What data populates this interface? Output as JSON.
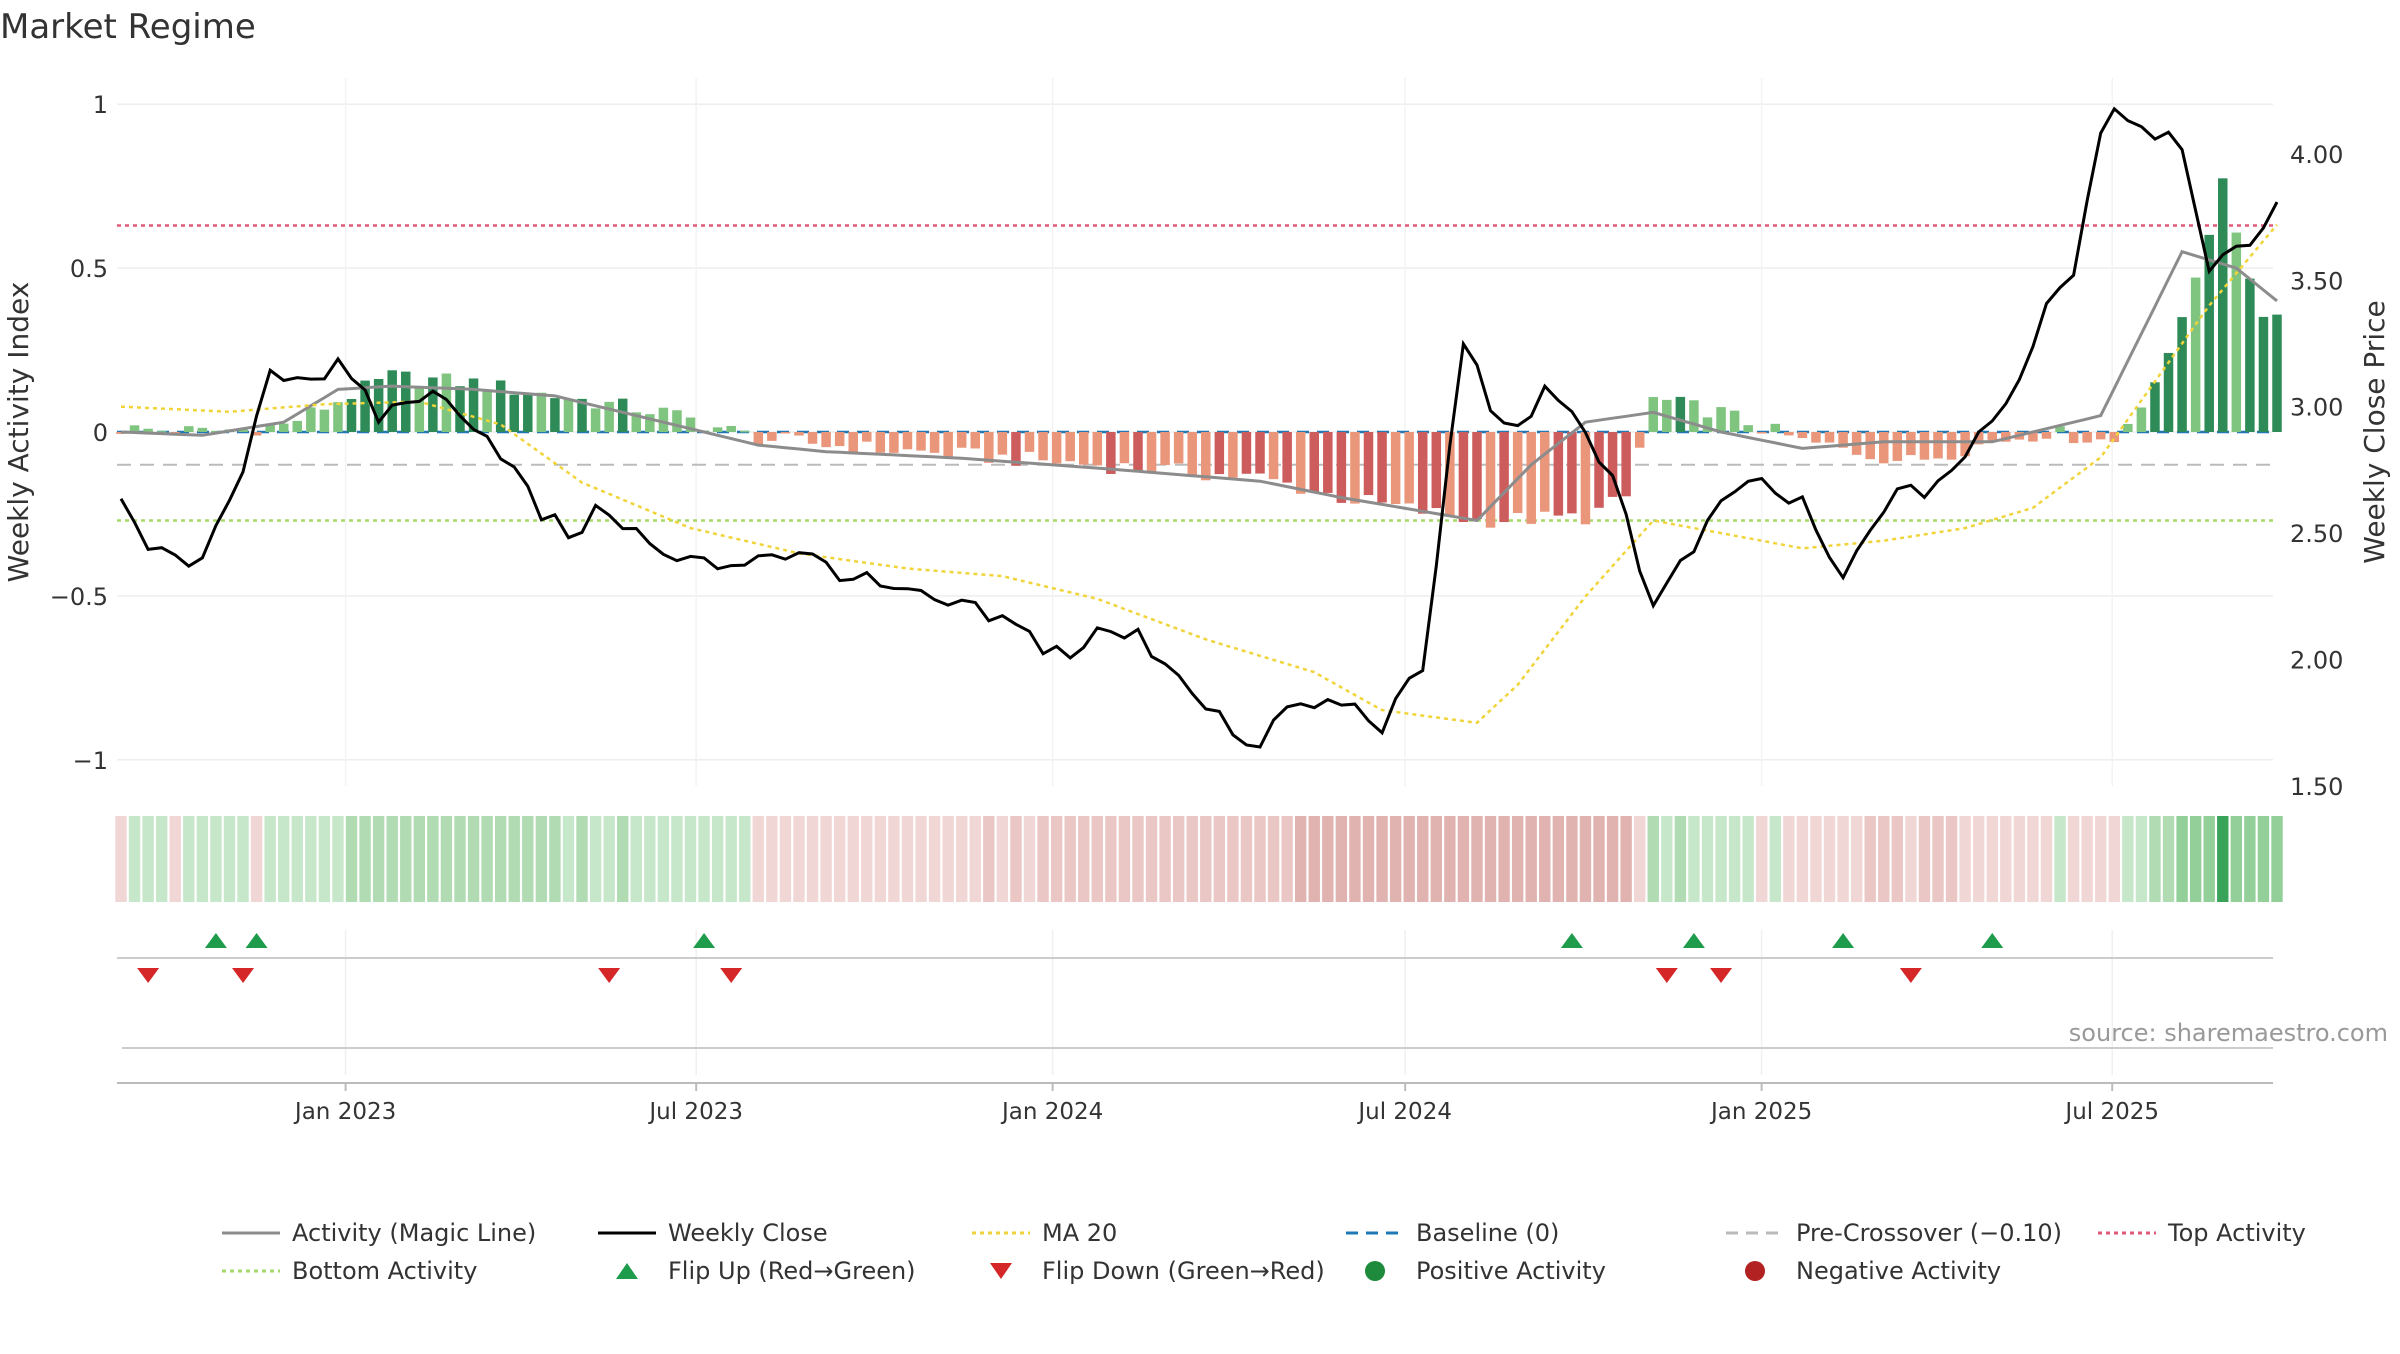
{
  "title": "Market Regime",
  "source": "source: sharemaestro.com",
  "colors": {
    "pos_strong": "#2e8b57",
    "pos_light": "#7fc47f",
    "neg_strong": "#cd5c5c",
    "neg_light": "#e9967a",
    "close": "#000000",
    "ma": "#f0d43a",
    "magic": "#8c8c8c",
    "baseline": "#1f77b4",
    "precross": "#bbbbbb",
    "top": "#e05a7a",
    "bottom": "#a6d96a",
    "flip_up": "#1e9c4c",
    "flip_down": "#d62728",
    "grid": "#eeeeee"
  },
  "chart_data": {
    "type": "bar",
    "title": "Market Regime",
    "ylabel": "Weekly Activity Index",
    "y2label": "Weekly Close Price",
    "ylim": [
      -1.08,
      1.08
    ],
    "y2lim": [
      1.5,
      4.3
    ],
    "yticks": [
      1,
      0.5,
      0,
      -0.5,
      -1
    ],
    "ytick_labels": [
      "1",
      "0.5",
      "0",
      "−0.5",
      "−1"
    ],
    "y2ticks": [
      4.0,
      3.5,
      3.0,
      2.5,
      2.0,
      1.5
    ],
    "y2tick_labels": [
      "4.00",
      "3.50",
      "3.00",
      "2.50",
      "2.00",
      "1.50"
    ],
    "x_range": [
      "2022-09-05",
      "2025-09-22"
    ],
    "x_ticks": [
      {
        "date": "2023-01-01",
        "label": "Jan 2023"
      },
      {
        "date": "2023-07-01",
        "label": "Jul 2023"
      },
      {
        "date": "2024-01-01",
        "label": "Jan 2024"
      },
      {
        "date": "2024-07-01",
        "label": "Jul 2024"
      },
      {
        "date": "2025-01-01",
        "label": "Jan 2025"
      },
      {
        "date": "2025-07-01",
        "label": "Jul 2025"
      }
    ],
    "weeks": {
      "start": "2022-09-05",
      "count": 160
    },
    "activity_keys": [
      [
        0,
        0.01
      ],
      [
        6,
        0.0
      ],
      [
        12,
        0.02
      ],
      [
        20,
        0.17
      ],
      [
        26,
        0.15
      ],
      [
        32,
        0.11
      ],
      [
        40,
        0.06
      ],
      [
        47,
        -0.02
      ],
      [
        55,
        -0.05
      ],
      [
        62,
        -0.07
      ],
      [
        72,
        -0.1
      ],
      [
        84,
        -0.14
      ],
      [
        90,
        -0.2
      ],
      [
        100,
        -0.27
      ],
      [
        108,
        -0.26
      ],
      [
        111,
        -0.2
      ],
      [
        113,
        0.1
      ],
      [
        118,
        0.06
      ],
      [
        124,
        -0.03
      ],
      [
        132,
        -0.09
      ],
      [
        138,
        -0.03
      ],
      [
        142,
        0.0
      ],
      [
        147,
        -0.03
      ],
      [
        151,
        0.22
      ],
      [
        155,
        0.75
      ],
      [
        158,
        0.35
      ],
      [
        159,
        0.38
      ]
    ],
    "close_keys": [
      [
        0,
        2.67
      ],
      [
        2,
        2.47
      ],
      [
        5,
        2.33
      ],
      [
        8,
        2.59
      ],
      [
        11,
        3.15
      ],
      [
        14,
        3.12
      ],
      [
        16,
        3.15
      ],
      [
        19,
        2.96
      ],
      [
        22,
        3.05
      ],
      [
        25,
        3.0
      ],
      [
        28,
        2.83
      ],
      [
        31,
        2.57
      ],
      [
        33,
        2.5
      ],
      [
        36,
        2.6
      ],
      [
        40,
        2.4
      ],
      [
        44,
        2.37
      ],
      [
        48,
        2.43
      ],
      [
        52,
        2.38
      ],
      [
        55,
        2.3
      ],
      [
        58,
        2.25
      ],
      [
        62,
        2.2
      ],
      [
        65,
        2.15
      ],
      [
        68,
        2.06
      ],
      [
        70,
        2.02
      ],
      [
        72,
        2.1
      ],
      [
        75,
        2.09
      ],
      [
        77,
        2.0
      ],
      [
        81,
        1.78
      ],
      [
        83,
        1.62
      ],
      [
        86,
        1.8
      ],
      [
        90,
        1.83
      ],
      [
        93,
        1.75
      ],
      [
        96,
        1.95
      ],
      [
        99,
        3.26
      ],
      [
        102,
        2.9
      ],
      [
        105,
        3.04
      ],
      [
        108,
        2.9
      ],
      [
        110,
        2.74
      ],
      [
        113,
        2.2
      ],
      [
        117,
        2.52
      ],
      [
        120,
        2.72
      ],
      [
        124,
        2.6
      ],
      [
        127,
        2.3
      ],
      [
        130,
        2.62
      ],
      [
        133,
        2.67
      ],
      [
        136,
        2.8
      ],
      [
        139,
        3.0
      ],
      [
        142,
        3.4
      ],
      [
        144,
        3.55
      ],
      [
        146,
        4.1
      ],
      [
        147,
        4.19
      ],
      [
        149,
        4.12
      ],
      [
        152,
        4.05
      ],
      [
        154,
        3.57
      ],
      [
        157,
        3.6
      ],
      [
        159,
        3.85
      ]
    ],
    "ma_keys": [
      [
        0,
        3.0
      ],
      [
        8,
        2.98
      ],
      [
        15,
        3.01
      ],
      [
        22,
        3.02
      ],
      [
        28,
        2.93
      ],
      [
        34,
        2.7
      ],
      [
        42,
        2.52
      ],
      [
        50,
        2.42
      ],
      [
        58,
        2.36
      ],
      [
        65,
        2.33
      ],
      [
        72,
        2.24
      ],
      [
        80,
        2.08
      ],
      [
        88,
        1.95
      ],
      [
        93,
        1.8
      ],
      [
        100,
        1.75
      ],
      [
        103,
        1.9
      ],
      [
        108,
        2.25
      ],
      [
        113,
        2.55
      ],
      [
        118,
        2.5
      ],
      [
        124,
        2.44
      ],
      [
        130,
        2.47
      ],
      [
        136,
        2.52
      ],
      [
        141,
        2.6
      ],
      [
        146,
        2.8
      ],
      [
        150,
        3.1
      ],
      [
        154,
        3.4
      ],
      [
        159,
        3.72
      ]
    ],
    "magic_keys": [
      [
        0,
        0.0
      ],
      [
        6,
        -0.01
      ],
      [
        12,
        0.03
      ],
      [
        16,
        0.13
      ],
      [
        20,
        0.14
      ],
      [
        26,
        0.13
      ],
      [
        32,
        0.11
      ],
      [
        38,
        0.05
      ],
      [
        42,
        0.01
      ],
      [
        47,
        -0.04
      ],
      [
        52,
        -0.06
      ],
      [
        62,
        -0.08
      ],
      [
        72,
        -0.11
      ],
      [
        84,
        -0.15
      ],
      [
        90,
        -0.2
      ],
      [
        100,
        -0.27
      ],
      [
        104,
        -0.1
      ],
      [
        108,
        0.03
      ],
      [
        113,
        0.06
      ],
      [
        118,
        0.0
      ],
      [
        124,
        -0.05
      ],
      [
        130,
        -0.03
      ],
      [
        138,
        -0.03
      ],
      [
        146,
        0.05
      ],
      [
        152,
        0.55
      ],
      [
        156,
        0.5
      ],
      [
        159,
        0.4
      ]
    ],
    "baseline": 0,
    "pre_crossover": -0.1,
    "top_activity": 0.63,
    "bottom_activity": -0.27,
    "flip_up_weeks": [
      7,
      10,
      43,
      107,
      116,
      127,
      138
    ],
    "flip_down_weeks": [
      2,
      9,
      36,
      45,
      114,
      118,
      132
    ],
    "legend": [
      {
        "label": "Activity (Magic Line)",
        "kind": "line",
        "color": "#8c8c8c",
        "dash": ""
      },
      {
        "label": "Weekly Close",
        "kind": "line",
        "color": "#000000",
        "dash": ""
      },
      {
        "label": "MA 20",
        "kind": "line",
        "color": "#f0d43a",
        "dash": "4 4"
      },
      {
        "label": "Baseline (0)",
        "kind": "line",
        "color": "#1f77b4",
        "dash": "12 8"
      },
      {
        "label": "Pre-Crossover (−0.10)",
        "kind": "line",
        "color": "#bbbbbb",
        "dash": "12 8"
      },
      {
        "label": "Top Activity",
        "kind": "line",
        "color": "#e05a7a",
        "dash": "4 4"
      },
      {
        "label": "Bottom Activity",
        "kind": "line",
        "color": "#a6d96a",
        "dash": "4 4"
      },
      {
        "label": "Flip Up (Red→Green)",
        "kind": "tri-up",
        "color": "#1e9c4c"
      },
      {
        "label": "Flip Down (Green→Red)",
        "kind": "tri-down",
        "color": "#d62728"
      },
      {
        "label": "Positive Activity",
        "kind": "dot",
        "color": "#1e8a3c"
      },
      {
        "label": "Negative Activity",
        "kind": "dot",
        "color": "#b22222"
      }
    ]
  }
}
